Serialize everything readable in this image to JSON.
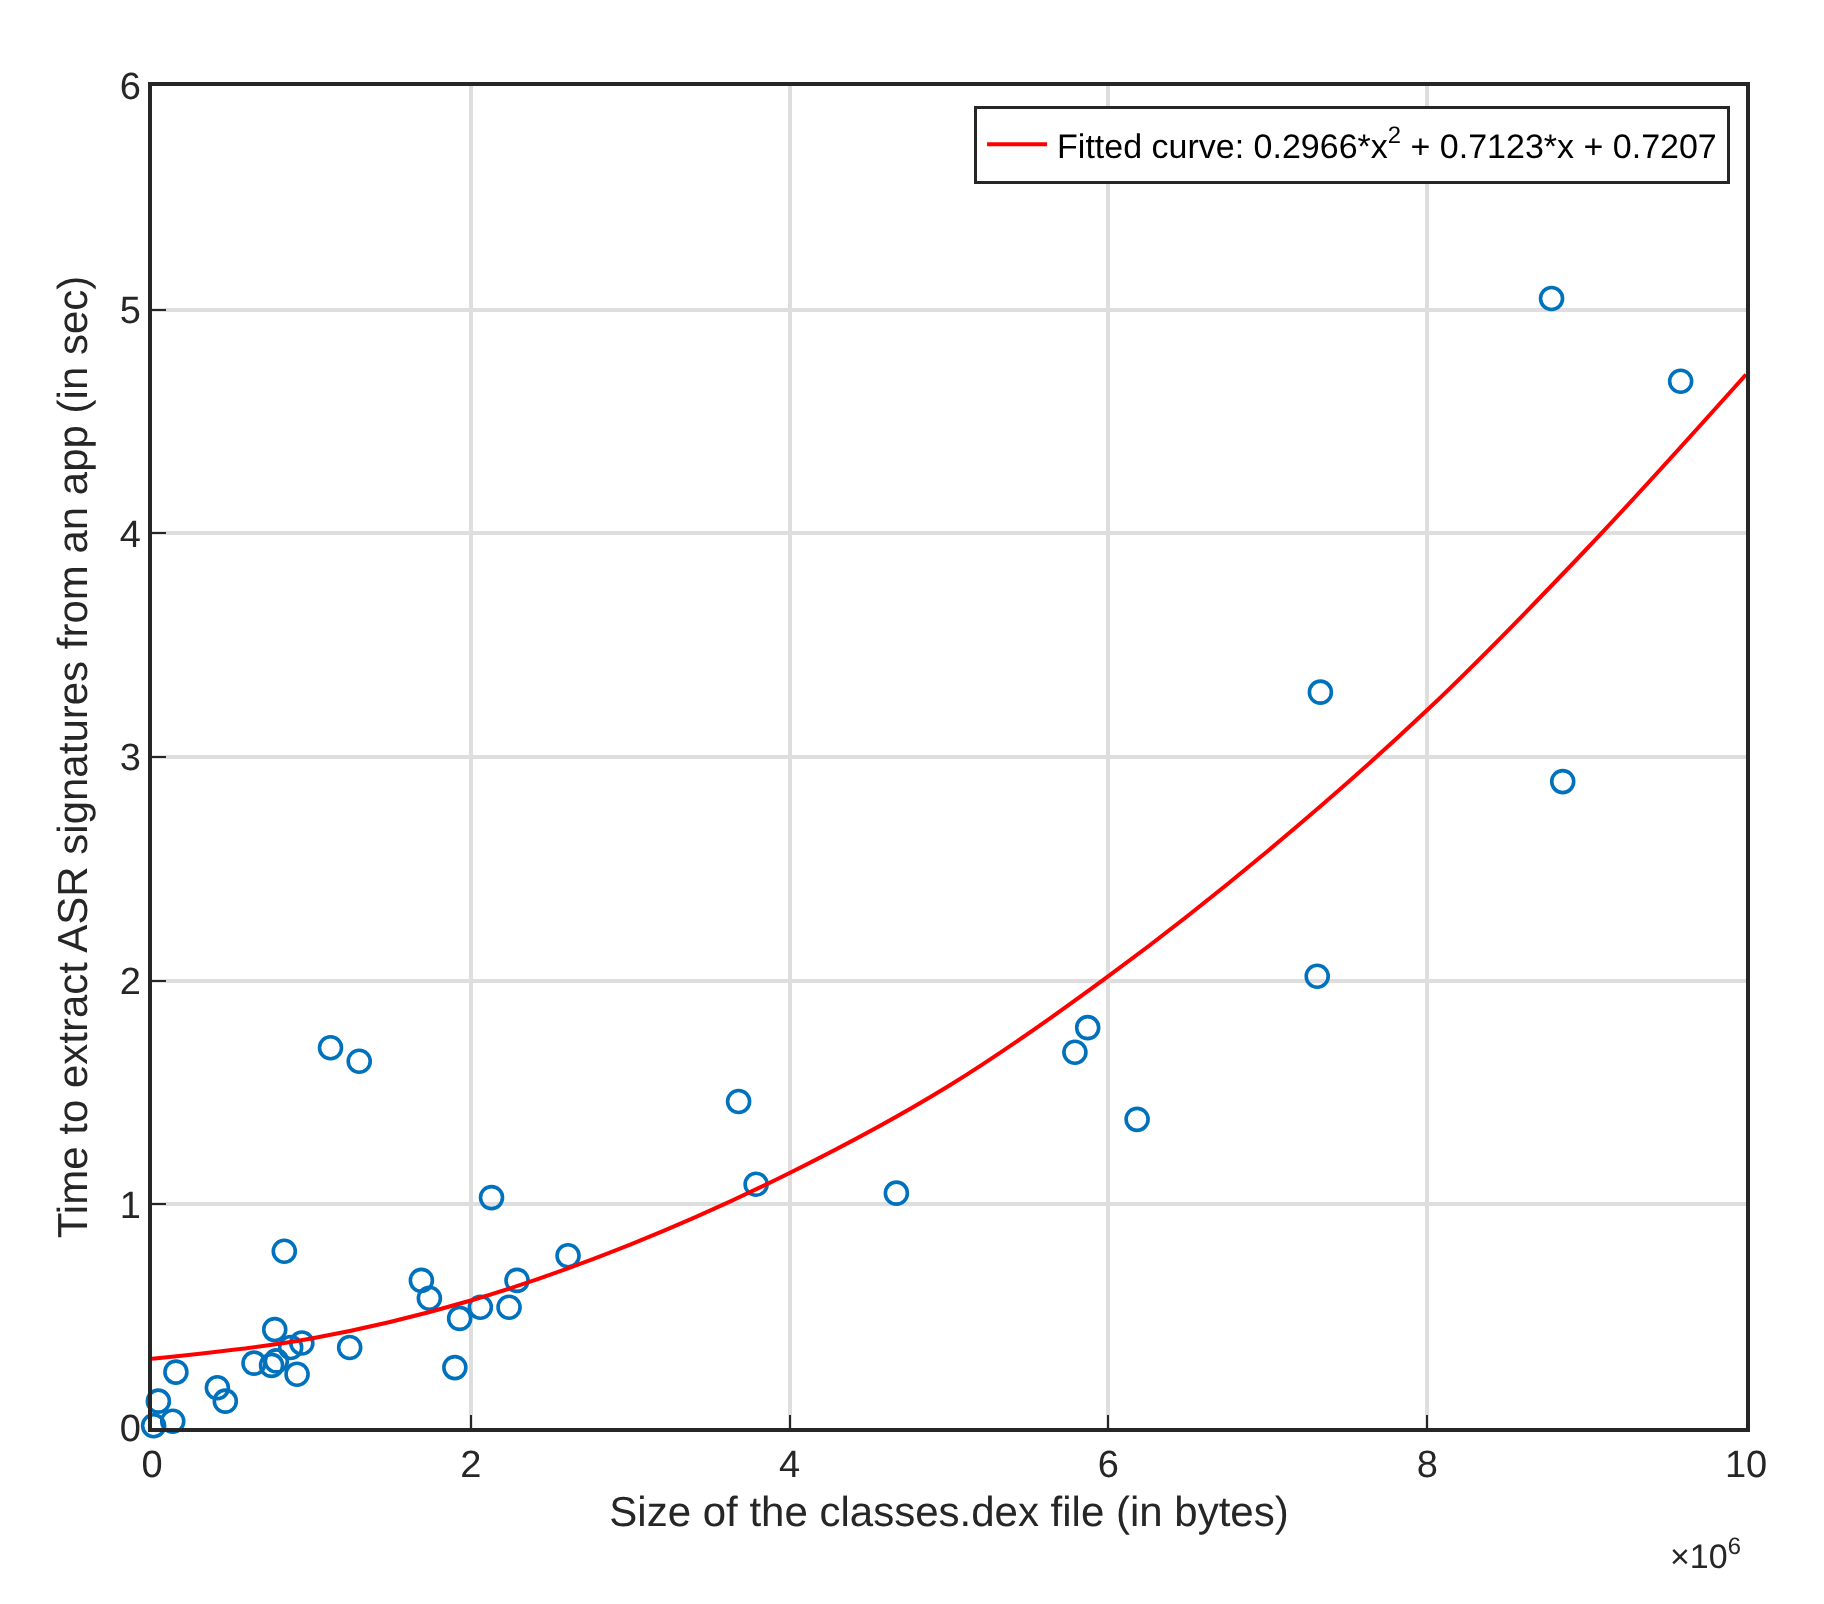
{
  "chart_data": {
    "type": "scatter",
    "xlabel": "Size of the classes.dex file (in bytes)",
    "ylabel": "Time to extract ASR signatures from an app (in sec)",
    "annotations": [
      "×10$^{6}$"
    ],
    "xlim": [
      0,
      10
    ],
    "xticks": [
      0,
      2,
      4,
      6,
      8,
      10
    ],
    "ylim": [
      0,
      6
    ],
    "yticks": [
      0,
      1,
      2,
      3,
      4,
      5,
      6
    ],
    "grid": true,
    "legend": "top right",
    "series": [
      {
        "color": "#0072bd",
        "marker": "circle",
        "x": [
          0.01,
          0.04,
          0.13,
          0.15,
          0.41,
          0.46,
          0.64,
          0.75,
          0.78,
          0.77,
          0.87,
          0.94,
          0.91,
          0.83,
          1.12,
          1.3,
          1.24,
          1.69,
          1.74,
          1.93,
          1.9,
          2.06,
          2.24,
          2.29,
          2.13,
          2.61,
          3.68,
          3.79,
          4.67,
          5.79,
          5.87,
          6.18,
          7.31,
          7.33,
          8.78,
          8.85,
          9.59
        ],
        "values": [
          0.01,
          0.12,
          0.03,
          0.25,
          0.18,
          0.12,
          0.29,
          0.28,
          0.3,
          0.44,
          0.36,
          0.38,
          0.24,
          0.79,
          1.7,
          1.64,
          0.36,
          0.66,
          0.58,
          0.49,
          0.27,
          0.54,
          0.54,
          0.66,
          1.03,
          0.77,
          1.46,
          1.09,
          1.05,
          1.68,
          1.79,
          1.38,
          2.02,
          3.29,
          5.05,
          2.89,
          4.68
        ]
      },
      {
        "type": "line",
        "name": "Fitted curve: 0.2966*x$^{2}$ + 0.7123*x + 0.7207",
        "color": "#ff0000",
        "marker": "none",
        "line_style": "solid",
        "x": [
          0,
          1,
          2,
          3,
          4,
          5,
          6,
          7,
          8,
          9,
          10
        ],
        "values": [
          0.31,
          0.4,
          0.57,
          0.82,
          1.14,
          1.53,
          2.02,
          2.58,
          3.21,
          3.93,
          4.71
        ]
      }
    ]
  }
}
